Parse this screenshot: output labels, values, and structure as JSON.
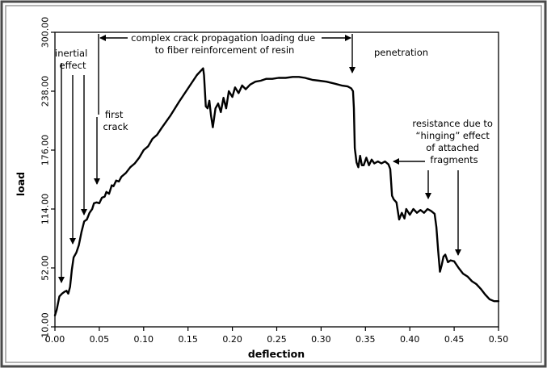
{
  "chart_data": {
    "type": "line",
    "title": "",
    "xlabel": "deflection",
    "ylabel": "load",
    "xlim": [
      0.0,
      0.5
    ],
    "ylim": [
      -10.0,
      300.0
    ],
    "x_ticks": [
      0.0,
      0.05,
      0.1,
      0.15,
      0.2,
      0.25,
      0.3,
      0.35,
      0.4,
      0.45,
      0.5
    ],
    "x_tick_labels": [
      "0.00",
      "0.05",
      "0.10",
      "0.15",
      "0.20",
      "0.25",
      "0.30",
      "0.35",
      "0.40",
      "0.45",
      "0.50"
    ],
    "y_ticks": [
      -10.0,
      52.0,
      114.0,
      176.0,
      238.0,
      300.0
    ],
    "y_tick_labels": [
      "-10.00",
      "52.00",
      "114.00",
      "176.00",
      "238.00",
      "300.00"
    ],
    "grid": false,
    "legend": "none",
    "colors": {
      "line": "#000000",
      "frame_outer": "#4a4a4a",
      "frame_inner": "#9a9a9a"
    },
    "series": [
      {
        "points": [
          [
            0.0,
            2
          ],
          [
            0.002,
            8
          ],
          [
            0.005,
            22
          ],
          [
            0.008,
            25
          ],
          [
            0.011,
            27
          ],
          [
            0.013,
            28
          ],
          [
            0.015,
            25
          ],
          [
            0.017,
            32
          ],
          [
            0.019,
            50
          ],
          [
            0.021,
            63
          ],
          [
            0.024,
            68
          ],
          [
            0.027,
            76
          ],
          [
            0.03,
            90
          ],
          [
            0.033,
            101
          ],
          [
            0.036,
            103
          ],
          [
            0.039,
            110
          ],
          [
            0.042,
            114
          ],
          [
            0.044,
            120
          ],
          [
            0.047,
            121
          ],
          [
            0.05,
            120
          ],
          [
            0.053,
            126
          ],
          [
            0.056,
            127
          ],
          [
            0.058,
            132
          ],
          [
            0.061,
            130
          ],
          [
            0.064,
            139
          ],
          [
            0.066,
            138
          ],
          [
            0.069,
            144
          ],
          [
            0.072,
            143
          ],
          [
            0.075,
            148
          ],
          [
            0.08,
            152
          ],
          [
            0.085,
            158
          ],
          [
            0.09,
            162
          ],
          [
            0.095,
            168
          ],
          [
            0.1,
            176
          ],
          [
            0.105,
            180
          ],
          [
            0.11,
            188
          ],
          [
            0.115,
            192
          ],
          [
            0.12,
            199
          ],
          [
            0.13,
            212
          ],
          [
            0.14,
            227
          ],
          [
            0.15,
            241
          ],
          [
            0.16,
            255
          ],
          [
            0.165,
            260
          ],
          [
            0.167,
            262
          ],
          [
            0.168,
            255
          ],
          [
            0.17,
            222
          ],
          [
            0.172,
            220
          ],
          [
            0.174,
            228
          ],
          [
            0.176,
            212
          ],
          [
            0.178,
            200
          ],
          [
            0.181,
            220
          ],
          [
            0.184,
            225
          ],
          [
            0.187,
            216
          ],
          [
            0.19,
            231
          ],
          [
            0.193,
            220
          ],
          [
            0.196,
            238
          ],
          [
            0.2,
            232
          ],
          [
            0.203,
            242
          ],
          [
            0.207,
            236
          ],
          [
            0.211,
            244
          ],
          [
            0.215,
            240
          ],
          [
            0.22,
            245
          ],
          [
            0.226,
            248
          ],
          [
            0.232,
            249
          ],
          [
            0.238,
            251
          ],
          [
            0.245,
            251
          ],
          [
            0.252,
            252
          ],
          [
            0.26,
            252
          ],
          [
            0.268,
            253
          ],
          [
            0.275,
            253
          ],
          [
            0.282,
            252
          ],
          [
            0.29,
            250
          ],
          [
            0.298,
            249
          ],
          [
            0.306,
            248
          ],
          [
            0.315,
            246
          ],
          [
            0.323,
            244
          ],
          [
            0.33,
            243
          ],
          [
            0.334,
            241
          ],
          [
            0.336,
            238
          ],
          [
            0.337,
            220
          ],
          [
            0.338,
            178
          ],
          [
            0.34,
            163
          ],
          [
            0.342,
            158
          ],
          [
            0.344,
            170
          ],
          [
            0.346,
            160
          ],
          [
            0.348,
            160
          ],
          [
            0.351,
            168
          ],
          [
            0.354,
            160
          ],
          [
            0.357,
            166
          ],
          [
            0.36,
            162
          ],
          [
            0.364,
            164
          ],
          [
            0.368,
            162
          ],
          [
            0.372,
            164
          ],
          [
            0.376,
            161
          ],
          [
            0.378,
            156
          ],
          [
            0.38,
            128
          ],
          [
            0.382,
            124
          ],
          [
            0.385,
            121
          ],
          [
            0.388,
            103
          ],
          [
            0.391,
            110
          ],
          [
            0.394,
            104
          ],
          [
            0.396,
            114
          ],
          [
            0.4,
            108
          ],
          [
            0.404,
            114
          ],
          [
            0.408,
            110
          ],
          [
            0.412,
            113
          ],
          [
            0.416,
            110
          ],
          [
            0.42,
            114
          ],
          [
            0.424,
            112
          ],
          [
            0.428,
            109
          ],
          [
            0.43,
            95
          ],
          [
            0.432,
            70
          ],
          [
            0.434,
            48
          ],
          [
            0.436,
            55
          ],
          [
            0.438,
            64
          ],
          [
            0.44,
            66
          ],
          [
            0.443,
            58
          ],
          [
            0.446,
            60
          ],
          [
            0.45,
            59
          ],
          [
            0.455,
            52
          ],
          [
            0.46,
            46
          ],
          [
            0.465,
            43
          ],
          [
            0.47,
            38
          ],
          [
            0.475,
            35
          ],
          [
            0.48,
            30
          ],
          [
            0.485,
            24
          ],
          [
            0.49,
            19
          ],
          [
            0.495,
            17
          ],
          [
            0.5,
            17
          ]
        ]
      }
    ],
    "annotations": [
      {
        "id": "inertial",
        "lines": [
          "inertial",
          "effect"
        ]
      },
      {
        "id": "first-crack",
        "lines": [
          "first",
          "crack"
        ]
      },
      {
        "id": "complex",
        "lines": [
          "complex crack propagation loading due",
          "to fiber reinforcement of resin"
        ]
      },
      {
        "id": "penetration",
        "lines": [
          "penetration"
        ]
      },
      {
        "id": "resistance",
        "lines": [
          "resistance due to",
          "“hinging” effect",
          "of attached",
          "fragments"
        ]
      }
    ]
  }
}
